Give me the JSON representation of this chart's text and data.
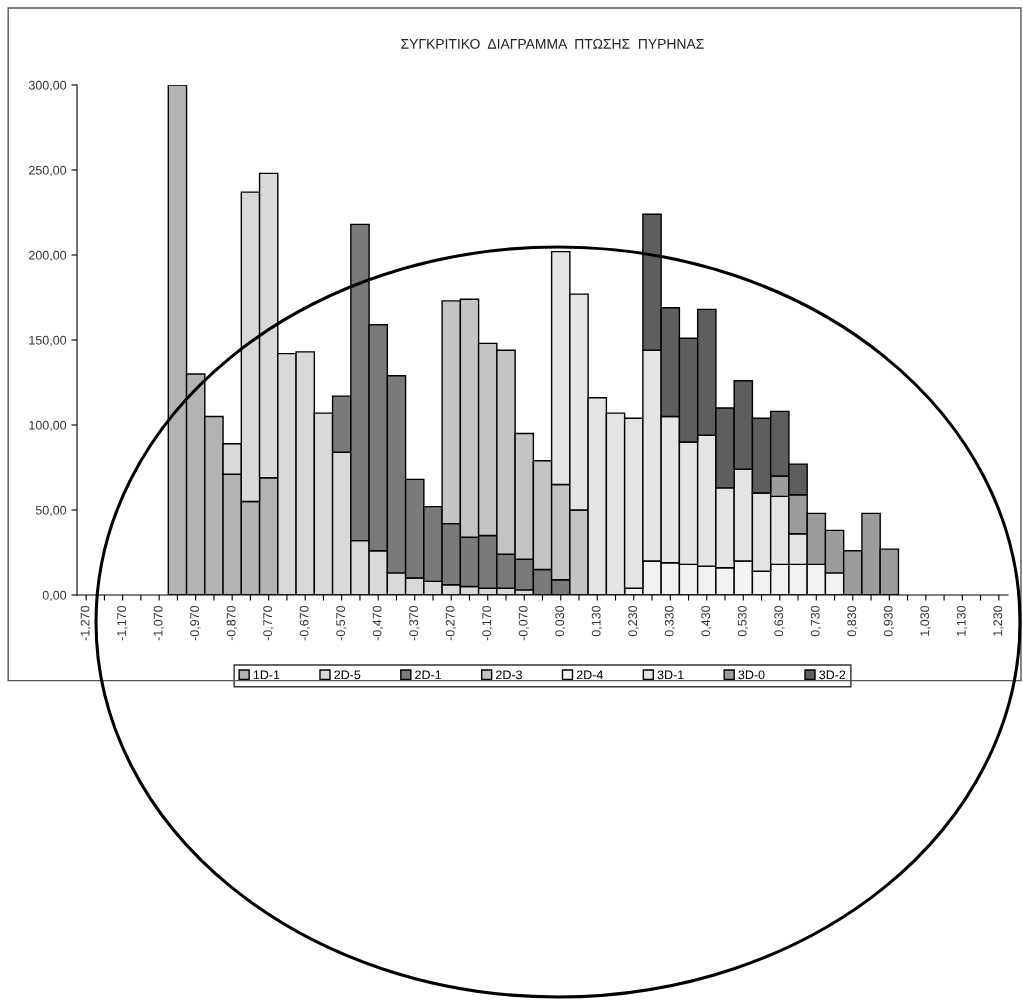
{
  "chart_data": {
    "type": "bar",
    "stacked": true,
    "title": "ΣΥΓΚΡΙΤΙΚΟ  ΔΙΑΓΡΑΜΜΑ  ΠΤΩΣΗΣ  ΠΥΡΗΝΑΣ",
    "categories": [
      "-1,270",
      null,
      "-1,170",
      null,
      "-1,070",
      null,
      "-0,970",
      null,
      "-0,870",
      null,
      "-0,770",
      null,
      "-0,670",
      null,
      "-0,570",
      null,
      "-0,470",
      null,
      "-0,370",
      null,
      "-0,270",
      null,
      "-0,170",
      null,
      "-0,070",
      null,
      "0,030",
      null,
      "0,130",
      null,
      "0,230",
      null,
      "0,330",
      null,
      "0,430",
      null,
      "0,530",
      null,
      "0,630",
      null,
      "0,730",
      null,
      "0,830",
      null,
      "0,930",
      null,
      "1,030",
      null,
      "1,130",
      null,
      "1,230"
    ],
    "series": [
      {
        "name": "1D-1",
        "color": "#b3b3b3",
        "values": [
          null,
          null,
          null,
          null,
          null,
          300,
          130,
          105,
          71,
          55,
          69,
          null,
          null,
          null,
          null,
          null,
          null,
          null,
          null,
          null,
          null,
          null,
          null,
          null,
          null,
          null,
          null,
          null,
          null,
          null,
          null,
          null,
          null,
          null,
          null,
          null,
          null,
          null,
          null,
          null,
          null,
          null,
          null,
          null,
          null,
          null,
          null,
          null,
          null,
          null,
          null
        ]
      },
      {
        "name": "2D-5",
        "color": "#d9d9d9",
        "values": [
          null,
          null,
          null,
          null,
          null,
          null,
          null,
          null,
          18,
          182,
          179,
          142,
          143,
          107,
          84,
          32,
          26,
          13,
          10,
          8,
          6,
          5,
          4,
          4,
          3,
          null,
          null,
          null,
          null,
          null,
          null,
          null,
          null,
          null,
          null,
          null,
          null,
          null,
          null,
          null,
          null,
          null,
          null,
          null,
          null,
          null,
          null,
          null,
          null,
          null,
          null
        ]
      },
      {
        "name": "2D-1",
        "color": "#7a7a7a",
        "values": [
          null,
          null,
          null,
          null,
          null,
          null,
          null,
          null,
          null,
          null,
          null,
          null,
          null,
          null,
          33,
          186,
          133,
          116,
          58,
          44,
          36,
          29,
          31,
          20,
          18,
          15,
          9,
          null,
          null,
          null,
          null,
          null,
          null,
          null,
          null,
          null,
          null,
          null,
          null,
          null,
          null,
          null,
          null,
          null,
          null,
          null,
          null,
          null,
          null,
          null,
          null
        ]
      },
      {
        "name": "2D-3",
        "color": "#c4c4c4",
        "values": [
          null,
          null,
          null,
          null,
          null,
          null,
          null,
          null,
          null,
          null,
          null,
          null,
          null,
          null,
          null,
          null,
          null,
          null,
          null,
          null,
          131,
          140,
          113,
          120,
          74,
          64,
          56,
          50,
          null,
          null,
          null,
          null,
          null,
          null,
          null,
          null,
          null,
          null,
          null,
          null,
          null,
          null,
          null,
          null,
          null,
          null,
          null,
          null,
          null,
          null,
          null
        ]
      },
      {
        "name": "2D-4",
        "color": "#f2f2f2",
        "values": [
          null,
          null,
          null,
          null,
          null,
          null,
          null,
          null,
          null,
          null,
          null,
          null,
          null,
          null,
          null,
          null,
          null,
          null,
          null,
          null,
          null,
          null,
          null,
          null,
          null,
          null,
          null,
          null,
          null,
          null,
          4,
          20,
          19,
          18,
          17,
          16,
          20,
          14,
          18,
          18,
          18,
          13,
          null,
          null,
          null,
          null,
          null,
          null,
          null,
          null,
          null
        ]
      },
      {
        "name": "3D-1",
        "color": "#e4e4e4",
        "values": [
          null,
          null,
          null,
          null,
          null,
          null,
          null,
          null,
          null,
          null,
          null,
          null,
          null,
          null,
          null,
          null,
          null,
          null,
          null,
          null,
          null,
          null,
          null,
          null,
          null,
          null,
          137,
          127,
          116,
          107,
          100,
          124,
          86,
          72,
          77,
          47,
          54,
          46,
          40,
          18,
          null,
          null,
          null,
          null,
          null,
          null,
          null,
          null,
          null,
          null,
          null
        ]
      },
      {
        "name": "3D-0",
        "color": "#9c9c9c",
        "values": [
          null,
          null,
          null,
          null,
          null,
          null,
          null,
          null,
          null,
          null,
          null,
          null,
          null,
          null,
          null,
          null,
          null,
          null,
          null,
          null,
          null,
          null,
          null,
          null,
          null,
          null,
          null,
          null,
          null,
          null,
          null,
          null,
          null,
          null,
          null,
          null,
          null,
          null,
          12,
          23,
          30,
          25,
          26,
          48,
          27,
          null,
          null,
          null,
          null,
          null,
          null
        ]
      },
      {
        "name": "3D-2",
        "color": "#5e5e5e",
        "values": [
          null,
          null,
          null,
          null,
          null,
          null,
          null,
          null,
          null,
          null,
          null,
          null,
          null,
          null,
          null,
          null,
          null,
          null,
          null,
          null,
          null,
          null,
          null,
          null,
          null,
          null,
          null,
          null,
          null,
          null,
          null,
          80,
          64,
          61,
          74,
          47,
          52,
          44,
          38,
          18,
          null,
          null,
          null,
          null,
          null,
          null,
          null,
          null,
          null,
          null,
          null
        ]
      }
    ],
    "ylim": [
      0,
      300
    ],
    "yticks": [
      {
        "value": 0,
        "label": "0,00"
      },
      {
        "value": 50,
        "label": "50,00"
      },
      {
        "value": 100,
        "label": "100,00"
      },
      {
        "value": 150,
        "label": "150,00"
      },
      {
        "value": 200,
        "label": "200,00"
      },
      {
        "value": 250,
        "label": "250,00"
      },
      {
        "value": 300,
        "label": "300,00"
      }
    ],
    "grid": false,
    "legend": "bottom"
  }
}
